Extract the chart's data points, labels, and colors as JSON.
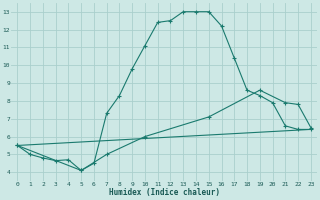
{
  "xlabel": "Humidex (Indice chaleur)",
  "bg_color": "#cde8e5",
  "grid_color": "#aacfcc",
  "line_color": "#1a7a6e",
  "xlim": [
    -0.5,
    23.5
  ],
  "ylim": [
    3.5,
    13.5
  ],
  "xticks": [
    0,
    1,
    2,
    3,
    4,
    5,
    6,
    7,
    8,
    9,
    10,
    11,
    12,
    13,
    14,
    15,
    16,
    17,
    18,
    19,
    20,
    21,
    22,
    23
  ],
  "yticks": [
    4,
    5,
    6,
    7,
    8,
    9,
    10,
    11,
    12,
    13
  ],
  "curve1_x": [
    0,
    1,
    2,
    3,
    4,
    5,
    6,
    7,
    8,
    9,
    10,
    11,
    12,
    13,
    14,
    15,
    16,
    17,
    18,
    19,
    20,
    21,
    22,
    23
  ],
  "curve1_y": [
    5.5,
    5.0,
    4.8,
    4.65,
    4.7,
    4.1,
    4.5,
    7.3,
    8.3,
    9.8,
    11.1,
    12.4,
    12.5,
    13.0,
    13.0,
    13.0,
    12.2,
    10.4,
    8.6,
    8.3,
    7.9,
    6.6,
    6.4,
    6.4
  ],
  "curve2_x": [
    0,
    5,
    7,
    10,
    15,
    19,
    21,
    22,
    23
  ],
  "curve2_y": [
    5.5,
    4.1,
    5.0,
    6.0,
    7.1,
    8.6,
    7.9,
    7.8,
    6.5
  ],
  "curve3_x": [
    0,
    23
  ],
  "curve3_y": [
    5.5,
    6.4
  ]
}
